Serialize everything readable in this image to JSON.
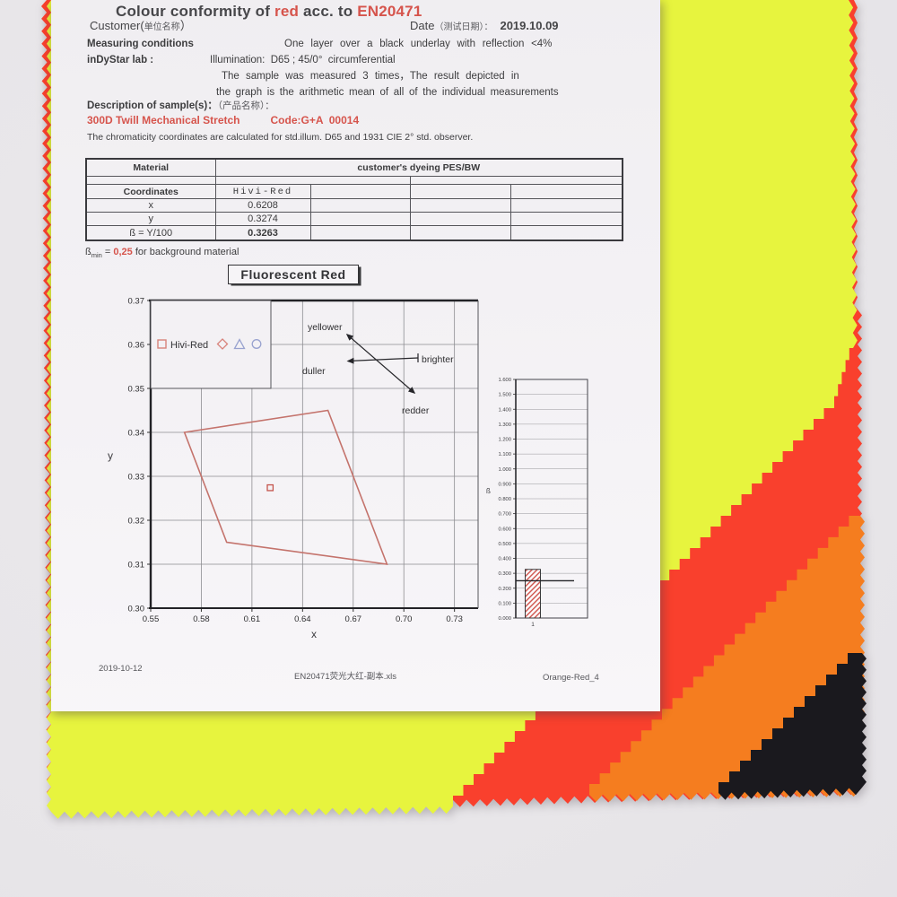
{
  "colors": {
    "backdrop": "#e9e7ea",
    "paper": "#f4f2f5",
    "fluorescent_yellow": "#e7f43e",
    "fluorescent_red": "#f9402d",
    "orange": "#f57d1f",
    "black_fabric": "#1a191e",
    "accent_red_text": "#d6544c",
    "accent_blue_text": "#8591c9",
    "polygon_stroke": "#c4736c",
    "hatch_red": "#d0544c",
    "legend_pink": "#d8837b",
    "legend_blue": "#98a2cf"
  },
  "document": {
    "title": {
      "pre": "Colour conformity of ",
      "red1": "red",
      "mid": " acc. to ",
      "red2": "EN20471"
    },
    "customer": {
      "label": "Customer(",
      "label_cn": "单位名称",
      "label_close": "）",
      "value": ""
    },
    "date": {
      "label": "Date",
      "label_cn": "（测试日期）：",
      "value": "2019.10.09"
    },
    "measuring": {
      "label": "Measuring conditions",
      "value": "One layer over a black underlay with reflection <4%"
    },
    "lab": {
      "label": "inDyStar lab :",
      "illumination": "Illumination:  D65 ; 45/0°  circumferential"
    },
    "notes": {
      "line1": "The sample was measured 3 times，The result depicted in",
      "line2": "the graph is the arithmetic mean of all of the individual measurements"
    },
    "description": {
      "label": "Description of sample(s)：",
      "label_cn": "（产品名称）："
    },
    "sample": {
      "name": "300D Twill Mechanical Stretch",
      "code": "Code:G+A  00014"
    },
    "chromaticity_note": "The chromaticity coordinates are calculated for std.illum. D65 and 1931 CIE 2° std. observer.",
    "table": {
      "material_label": "Material",
      "material_value": "customer's dyeing PES/BW",
      "coordinates_label": "Coordinates",
      "sample_column": "Hivi-Red",
      "rows": [
        {
          "label": "x",
          "value": "0.6208"
        },
        {
          "label": "y",
          "value": "0.3274"
        },
        {
          "label": "ß = Y/100",
          "value": "0.3263"
        }
      ]
    },
    "beta_min": {
      "symbol": "ß",
      "sub": "min",
      "eq": " = ",
      "value": "0,25",
      "rest": " for background material"
    },
    "chart_title": "Fluorescent Red",
    "footer": {
      "date": "2019-10-12",
      "filename": "EN20471荧光大红-副本.xls",
      "page": "Orange-Red_4"
    }
  },
  "chart_data": [
    {
      "type": "scatter",
      "title": "Fluorescent Red",
      "xlabel": "x",
      "ylabel": "y",
      "xlim": [
        0.55,
        0.744
      ],
      "ylim": [
        0.3,
        0.37
      ],
      "xticks": [
        "0.55",
        "0.58",
        "0.61",
        "0.64",
        "0.67",
        "0.70",
        "0.73"
      ],
      "yticks": [
        "0.30",
        "0.31",
        "0.32",
        "0.33",
        "0.34",
        "0.35",
        "0.36",
        "0.37"
      ],
      "grid": true,
      "legend": {
        "label": "Hivi-Red",
        "markers": [
          "square",
          "diamond",
          "triangle",
          "circle"
        ],
        "position": "top-left"
      },
      "tolerance_polygon": [
        [
          0.57,
          0.34
        ],
        [
          0.655,
          0.345
        ],
        [
          0.69,
          0.31
        ],
        [
          0.595,
          0.315
        ]
      ],
      "points": [
        {
          "name": "Hivi-Red",
          "x": 0.6208,
          "y": 0.3274,
          "marker": "square"
        }
      ],
      "annotations": {
        "up_left": "yellower",
        "left": "duller",
        "right": "brighter",
        "down_right": "redder"
      }
    },
    {
      "type": "bar",
      "ylabel": "ß",
      "categories": [
        "1"
      ],
      "values": [
        0.3263
      ],
      "ylim": [
        0,
        1.6
      ],
      "yticks": [
        "0.000",
        "0.100",
        "0.200",
        "0.300",
        "0.400",
        "0.500",
        "0.600",
        "0.700",
        "0.800",
        "0.900",
        "1.000",
        "1.100",
        "1.200",
        "1.300",
        "1.400",
        "1.500",
        "1.600"
      ],
      "reference_line": 0.25,
      "bar_style": "red-hatch",
      "grid": true
    }
  ]
}
